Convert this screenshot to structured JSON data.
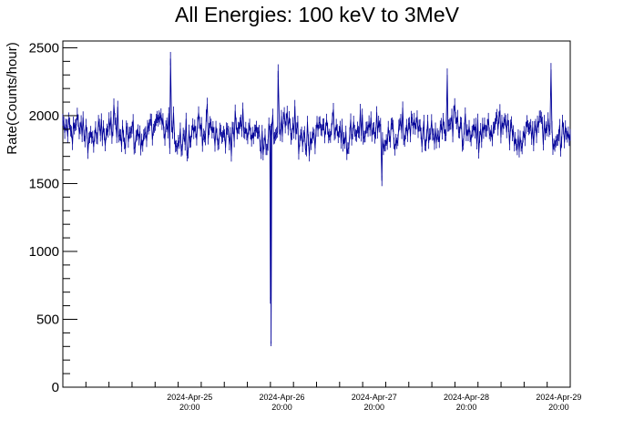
{
  "chart_data": {
    "type": "line",
    "title": "All Energies:  100 keV to 3MeV",
    "xlabel": "",
    "ylabel": "Rate(Counts/hour)",
    "ylim": [
      0,
      2550
    ],
    "yticks": [
      0,
      500,
      1000,
      1500,
      2000,
      2500
    ],
    "xlim": [
      "2024-04-24 11:00",
      "2024-04-29 23:00"
    ],
    "xticks": [
      {
        "x": "2024-04-25 20:00",
        "label_date": "2024-Apr-25",
        "label_time": "20:00"
      },
      {
        "x": "2024-04-26 20:00",
        "label_date": "2024-Apr-26",
        "label_time": "20:00"
      },
      {
        "x": "2024-04-27 20:00",
        "label_date": "2024-Apr-27",
        "label_time": "20:00"
      },
      {
        "x": "2024-04-28 20:00",
        "label_date": "2024-Apr-28",
        "label_time": "20:00"
      },
      {
        "x": "2024-04-29 20:00",
        "label_date": "2024-Apr-29",
        "label_time": "20:00"
      }
    ],
    "series": [
      {
        "color": "#000099",
        "x_start": "2024-04-24 11:00",
        "x_end": "2024-04-29 23:00",
        "points": 528,
        "typical_mean": 1880,
        "typical_min": 1520,
        "typical_max": 2420,
        "notable_points": [
          {
            "x": "2024-04-25 15:00",
            "y": 2420
          },
          {
            "x": "2024-04-26 19:00",
            "y": 2330
          },
          {
            "x": "2024-04-26 17:00",
            "y": 640
          },
          {
            "x": "2024-04-26 17:10",
            "y": 320
          },
          {
            "x": "2024-04-28 15:00",
            "y": 2300
          },
          {
            "x": "2024-04-29 18:00",
            "y": 2340
          },
          {
            "x": "2024-04-27 22:00",
            "y": 1520
          }
        ]
      }
    ],
    "grid": false,
    "legend": "none"
  }
}
